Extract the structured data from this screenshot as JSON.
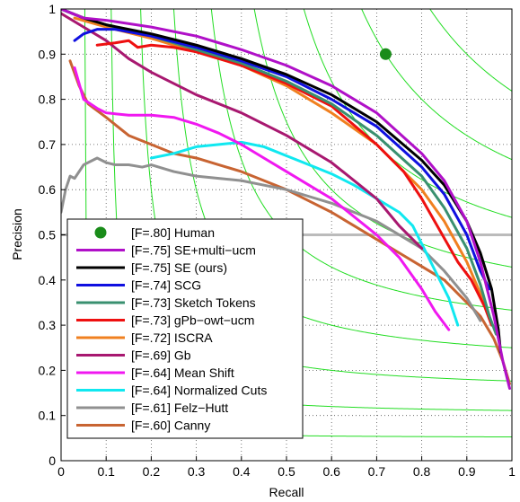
{
  "chart_data": {
    "type": "line",
    "xlabel": "Recall",
    "ylabel": "Precision",
    "xlim": [
      0,
      1
    ],
    "ylim": [
      0,
      1
    ],
    "grid": true,
    "legend_position": "bottom-left",
    "x_ticks": [
      "0",
      "0.1",
      "0.2",
      "0.3",
      "0.4",
      "0.5",
      "0.6",
      "0.7",
      "0.8",
      "0.9",
      "1"
    ],
    "y_ticks": [
      "0",
      "0.1",
      "0.2",
      "0.3",
      "0.4",
      "0.5",
      "0.6",
      "0.7",
      "0.8",
      "0.9",
      "1"
    ],
    "iso_f_curves": [
      0.1,
      0.2,
      0.3,
      0.4,
      0.5,
      0.6,
      0.7,
      0.8,
      0.9
    ],
    "iso_f_color": "#22dd22",
    "reference_line": {
      "y": 0.5,
      "color": "#bbbbbb"
    },
    "human": {
      "label": "[F=.80] Human",
      "x": 0.72,
      "y": 0.9,
      "color": "#1a8c1a"
    },
    "series": [
      {
        "name": "[F=.75] SE+multi−ucm",
        "color": "#b010c8",
        "points": [
          [
            0.0,
            1.0
          ],
          [
            0.05,
            0.98
          ],
          [
            0.1,
            0.975
          ],
          [
            0.2,
            0.96
          ],
          [
            0.3,
            0.94
          ],
          [
            0.4,
            0.91
          ],
          [
            0.5,
            0.875
          ],
          [
            0.6,
            0.83
          ],
          [
            0.7,
            0.77
          ],
          [
            0.8,
            0.68
          ],
          [
            0.85,
            0.62
          ],
          [
            0.9,
            0.53
          ],
          [
            0.93,
            0.44
          ],
          [
            0.96,
            0.32
          ],
          [
            0.98,
            0.22
          ],
          [
            0.995,
            0.16
          ]
        ]
      },
      {
        "name": "[F=.75] SE (ours)",
        "color": "#000000",
        "points": [
          [
            0.0,
            1.0
          ],
          [
            0.05,
            0.98
          ],
          [
            0.1,
            0.965
          ],
          [
            0.2,
            0.945
          ],
          [
            0.3,
            0.92
          ],
          [
            0.4,
            0.89
          ],
          [
            0.5,
            0.855
          ],
          [
            0.6,
            0.81
          ],
          [
            0.7,
            0.75
          ],
          [
            0.8,
            0.665
          ],
          [
            0.85,
            0.61
          ],
          [
            0.9,
            0.53
          ],
          [
            0.93,
            0.46
          ],
          [
            0.955,
            0.38
          ],
          [
            0.97,
            0.29
          ],
          [
            0.975,
            0.24
          ]
        ]
      },
      {
        "name": "[F=.74] SCG",
        "color": "#1010e0",
        "points": [
          [
            0.03,
            0.93
          ],
          [
            0.05,
            0.945
          ],
          [
            0.08,
            0.955
          ],
          [
            0.12,
            0.955
          ],
          [
            0.2,
            0.94
          ],
          [
            0.3,
            0.915
          ],
          [
            0.4,
            0.885
          ],
          [
            0.5,
            0.85
          ],
          [
            0.6,
            0.8
          ],
          [
            0.7,
            0.74
          ],
          [
            0.8,
            0.65
          ],
          [
            0.85,
            0.59
          ],
          [
            0.9,
            0.5
          ],
          [
            0.93,
            0.42
          ],
          [
            0.95,
            0.38
          ]
        ]
      },
      {
        "name": "[F=.73] Sketch Tokens",
        "color": "#3a9070",
        "points": [
          [
            0.0,
            1.0
          ],
          [
            0.05,
            0.98
          ],
          [
            0.1,
            0.965
          ],
          [
            0.2,
            0.94
          ],
          [
            0.3,
            0.91
          ],
          [
            0.4,
            0.88
          ],
          [
            0.5,
            0.84
          ],
          [
            0.6,
            0.79
          ],
          [
            0.7,
            0.72
          ],
          [
            0.8,
            0.63
          ],
          [
            0.85,
            0.56
          ],
          [
            0.9,
            0.47
          ],
          [
            0.93,
            0.39
          ],
          [
            0.95,
            0.32
          ],
          [
            0.965,
            0.28
          ]
        ]
      },
      {
        "name": "[F=.73] gPb−owt−ucm",
        "color": "#ee1010",
        "points": [
          [
            0.08,
            0.92
          ],
          [
            0.12,
            0.925
          ],
          [
            0.15,
            0.93
          ],
          [
            0.17,
            0.915
          ],
          [
            0.2,
            0.92
          ],
          [
            0.25,
            0.915
          ],
          [
            0.3,
            0.905
          ],
          [
            0.4,
            0.875
          ],
          [
            0.5,
            0.835
          ],
          [
            0.6,
            0.785
          ],
          [
            0.7,
            0.7
          ],
          [
            0.76,
            0.64
          ],
          [
            0.8,
            0.58
          ],
          [
            0.84,
            0.51
          ],
          [
            0.88,
            0.44
          ],
          [
            0.91,
            0.4
          ],
          [
            0.94,
            0.34
          ],
          [
            0.955,
            0.3
          ]
        ]
      },
      {
        "name": "[F=.72] ISCRA",
        "color": "#f08020",
        "points": [
          [
            0.03,
            0.98
          ],
          [
            0.1,
            0.96
          ],
          [
            0.2,
            0.935
          ],
          [
            0.3,
            0.905
          ],
          [
            0.4,
            0.875
          ],
          [
            0.5,
            0.83
          ],
          [
            0.6,
            0.77
          ],
          [
            0.7,
            0.7
          ],
          [
            0.8,
            0.6
          ],
          [
            0.85,
            0.53
          ],
          [
            0.9,
            0.44
          ],
          [
            0.93,
            0.37
          ],
          [
            0.95,
            0.32
          ]
        ]
      },
      {
        "name": "[F=.69] Gb",
        "color": "#a81870",
        "points": [
          [
            0.0,
            0.99
          ],
          [
            0.05,
            0.96
          ],
          [
            0.1,
            0.93
          ],
          [
            0.15,
            0.89
          ],
          [
            0.2,
            0.86
          ],
          [
            0.3,
            0.81
          ],
          [
            0.4,
            0.77
          ],
          [
            0.5,
            0.72
          ],
          [
            0.6,
            0.66
          ],
          [
            0.7,
            0.58
          ],
          [
            0.75,
            0.52
          ],
          [
            0.8,
            0.47
          ]
        ]
      },
      {
        "name": "[F=.64] Mean Shift",
        "color": "#f018f0",
        "points": [
          [
            0.03,
            0.87
          ],
          [
            0.05,
            0.8
          ],
          [
            0.08,
            0.78
          ],
          [
            0.1,
            0.77
          ],
          [
            0.15,
            0.765
          ],
          [
            0.2,
            0.765
          ],
          [
            0.25,
            0.76
          ],
          [
            0.3,
            0.745
          ],
          [
            0.35,
            0.725
          ],
          [
            0.4,
            0.7
          ],
          [
            0.45,
            0.67
          ],
          [
            0.5,
            0.64
          ],
          [
            0.55,
            0.61
          ],
          [
            0.6,
            0.58
          ],
          [
            0.65,
            0.54
          ],
          [
            0.7,
            0.5
          ],
          [
            0.75,
            0.45
          ],
          [
            0.8,
            0.38
          ],
          [
            0.83,
            0.33
          ],
          [
            0.86,
            0.29
          ]
        ]
      },
      {
        "name": "[F=.64] Normalized Cuts",
        "color": "#10e8f0",
        "points": [
          [
            0.2,
            0.67
          ],
          [
            0.25,
            0.68
          ],
          [
            0.3,
            0.695
          ],
          [
            0.35,
            0.7
          ],
          [
            0.4,
            0.705
          ],
          [
            0.45,
            0.695
          ],
          [
            0.5,
            0.675
          ],
          [
            0.55,
            0.655
          ],
          [
            0.6,
            0.635
          ],
          [
            0.65,
            0.61
          ],
          [
            0.7,
            0.58
          ],
          [
            0.75,
            0.55
          ],
          [
            0.78,
            0.52
          ],
          [
            0.8,
            0.48
          ],
          [
            0.83,
            0.42
          ],
          [
            0.86,
            0.36
          ],
          [
            0.88,
            0.3
          ]
        ]
      },
      {
        "name": "[F=.61] Felz−Hutt",
        "color": "#909090",
        "points": [
          [
            0.0,
            0.55
          ],
          [
            0.01,
            0.6
          ],
          [
            0.02,
            0.63
          ],
          [
            0.03,
            0.625
          ],
          [
            0.05,
            0.655
          ],
          [
            0.07,
            0.665
          ],
          [
            0.08,
            0.67
          ],
          [
            0.1,
            0.66
          ],
          [
            0.12,
            0.655
          ],
          [
            0.15,
            0.655
          ],
          [
            0.18,
            0.65
          ],
          [
            0.2,
            0.655
          ],
          [
            0.25,
            0.64
          ],
          [
            0.3,
            0.63
          ],
          [
            0.35,
            0.625
          ],
          [
            0.4,
            0.62
          ],
          [
            0.45,
            0.61
          ],
          [
            0.5,
            0.6
          ],
          [
            0.55,
            0.585
          ],
          [
            0.6,
            0.57
          ],
          [
            0.65,
            0.55
          ],
          [
            0.7,
            0.53
          ],
          [
            0.75,
            0.5
          ],
          [
            0.8,
            0.47
          ],
          [
            0.85,
            0.42
          ],
          [
            0.9,
            0.36
          ],
          [
            0.93,
            0.31
          ]
        ]
      },
      {
        "name": "[F=.60] Canny",
        "color": "#c86432",
        "points": [
          [
            0.02,
            0.885
          ],
          [
            0.04,
            0.83
          ],
          [
            0.06,
            0.79
          ],
          [
            0.1,
            0.76
          ],
          [
            0.15,
            0.72
          ],
          [
            0.2,
            0.7
          ],
          [
            0.25,
            0.68
          ],
          [
            0.3,
            0.67
          ],
          [
            0.35,
            0.655
          ],
          [
            0.4,
            0.64
          ],
          [
            0.45,
            0.62
          ],
          [
            0.5,
            0.6
          ],
          [
            0.55,
            0.575
          ],
          [
            0.6,
            0.55
          ],
          [
            0.65,
            0.52
          ],
          [
            0.7,
            0.49
          ],
          [
            0.75,
            0.46
          ],
          [
            0.8,
            0.43
          ],
          [
            0.85,
            0.4
          ],
          [
            0.88,
            0.37
          ],
          [
            0.9,
            0.35
          ],
          [
            0.93,
            0.32
          ],
          [
            0.96,
            0.27
          ],
          [
            0.98,
            0.22
          ],
          [
            0.995,
            0.17
          ]
        ]
      }
    ]
  }
}
